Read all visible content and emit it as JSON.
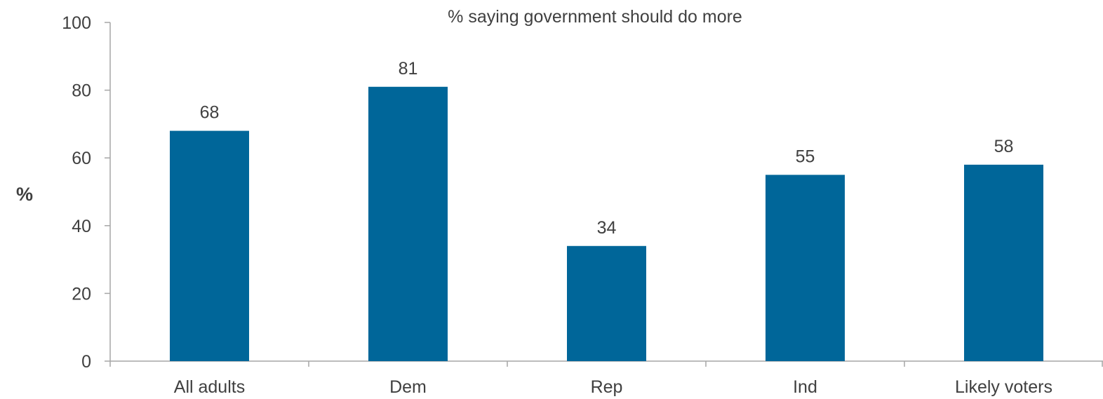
{
  "chart_data": {
    "type": "bar",
    "title": "% saying government should do more",
    "xlabel": "",
    "ylabel": "%",
    "categories": [
      "All adults",
      "Dem",
      "Rep",
      "Ind",
      "Likely voters"
    ],
    "values": [
      68,
      81,
      34,
      55,
      58
    ],
    "value_labels": [
      "68",
      "81",
      "34",
      "55",
      "58"
    ],
    "ylim": [
      0,
      100
    ],
    "yticks": [
      0,
      20,
      40,
      60,
      80,
      100
    ],
    "ytick_labels": [
      "0",
      "20",
      "40",
      "60",
      "80",
      "100"
    ],
    "grid": false,
    "legend": "none",
    "bar_color": "#006699"
  }
}
